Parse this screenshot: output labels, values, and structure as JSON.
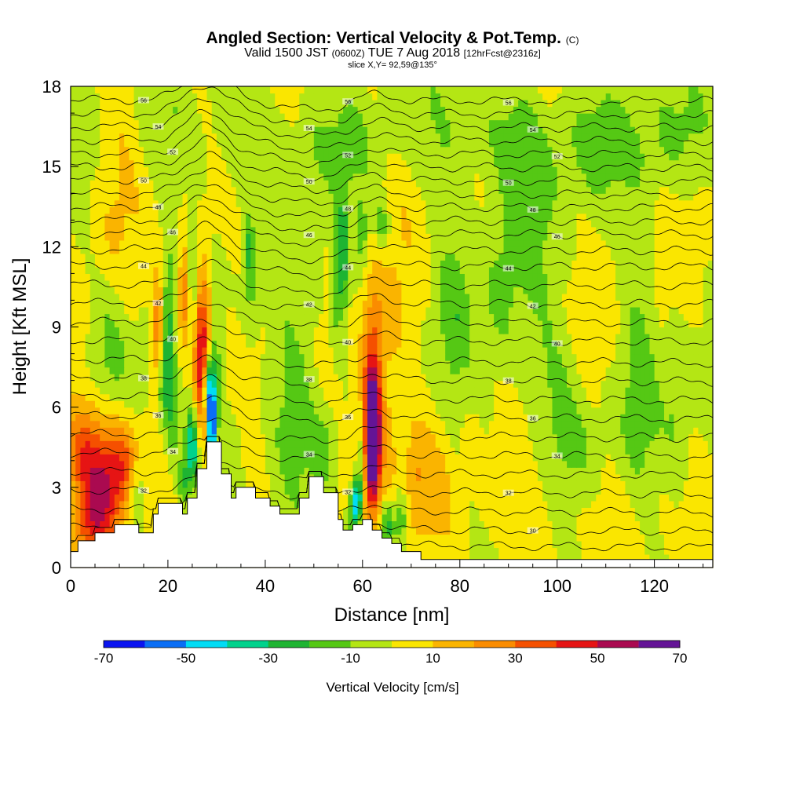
{
  "title": {
    "main": "Angled Section: Vertical Velocity & Pot.Temp.",
    "unit": "(C)",
    "valid_prefix": "Valid 1500 JST",
    "valid_zulu": "(0600Z)",
    "valid_date": "TUE 7 Aug 2018",
    "forecast": "[12hrFcst@2316z]",
    "slice": "slice X,Y= 92,59@135°"
  },
  "chart_data": {
    "type": "heatmap",
    "xlabel": "Distance [nm]",
    "ylabel": "Height [Kft MSL]",
    "xlim": [
      0,
      132
    ],
    "ylim": [
      0,
      18
    ],
    "xticks": [
      0,
      20,
      40,
      60,
      80,
      100,
      120
    ],
    "yticks": [
      0,
      3,
      6,
      9,
      12,
      15,
      18
    ],
    "colorbar": {
      "label": "Vertical Velocity [cm/s]",
      "ticks": [
        -70,
        -50,
        -30,
        -10,
        10,
        30,
        50,
        70
      ],
      "bounds": [
        -70,
        70
      ],
      "colors": [
        "#0a14f0",
        "#0a6ef5",
        "#00dcf5",
        "#00d28c",
        "#1eb432",
        "#55c814",
        "#b4e614",
        "#fae600",
        "#fab400",
        "#fa8c00",
        "#f55000",
        "#e61414",
        "#aa0a50",
        "#641496"
      ]
    },
    "background_velocity": 0,
    "terrain": [
      [
        0,
        0.6
      ],
      [
        1.5,
        0.6
      ],
      [
        1.5,
        1.0
      ],
      [
        5,
        1.0
      ],
      [
        5,
        1.3
      ],
      [
        9,
        1.3
      ],
      [
        9,
        1.6
      ],
      [
        14,
        1.6
      ],
      [
        14,
        1.3
      ],
      [
        17,
        1.3
      ],
      [
        17,
        2.0
      ],
      [
        18,
        2.0
      ],
      [
        18,
        2.4
      ],
      [
        23,
        2.4
      ],
      [
        23,
        2.0
      ],
      [
        24,
        2.0
      ],
      [
        24,
        2.6
      ],
      [
        26,
        2.6
      ],
      [
        26,
        3.7
      ],
      [
        28,
        3.7
      ],
      [
        28,
        4.7
      ],
      [
        31,
        4.7
      ],
      [
        31,
        3.5
      ],
      [
        33,
        3.5
      ],
      [
        33,
        2.6
      ],
      [
        34,
        2.6
      ],
      [
        34,
        3.0
      ],
      [
        38,
        3.0
      ],
      [
        38,
        2.6
      ],
      [
        41,
        2.6
      ],
      [
        41,
        2.3
      ],
      [
        43,
        2.3
      ],
      [
        43,
        2.0
      ],
      [
        47,
        2.0
      ],
      [
        47,
        2.6
      ],
      [
        49,
        2.6
      ],
      [
        49,
        3.4
      ],
      [
        52,
        3.4
      ],
      [
        52,
        2.8
      ],
      [
        55,
        2.8
      ],
      [
        55,
        1.8
      ],
      [
        56,
        1.8
      ],
      [
        56,
        1.4
      ],
      [
        58,
        1.4
      ],
      [
        58,
        1.6
      ],
      [
        60,
        1.6
      ],
      [
        60,
        1.8
      ],
      [
        62,
        1.8
      ],
      [
        62,
        1.4
      ],
      [
        64,
        1.4
      ],
      [
        64,
        1.1
      ],
      [
        66,
        1.1
      ],
      [
        66,
        0.9
      ],
      [
        68,
        0.9
      ],
      [
        68,
        0.6
      ],
      [
        72,
        0.6
      ],
      [
        72,
        0.3
      ],
      [
        132,
        0.3
      ]
    ],
    "features": [
      {
        "x": 7,
        "y": 3.2,
        "sx": 3.2,
        "sy": 1.6,
        "v": 45
      },
      {
        "x": 2.5,
        "y": 4.5,
        "sx": 2.5,
        "sy": 1.5,
        "v": 25
      },
      {
        "x": 4,
        "y": 1.6,
        "sx": 3,
        "sy": 0.7,
        "v": 20
      },
      {
        "x": 11,
        "y": 4.0,
        "sx": 2.5,
        "sy": 1.2,
        "v": 22
      },
      {
        "x": 13.5,
        "y": 2.8,
        "sx": 1.2,
        "sy": 0.9,
        "v": -18
      },
      {
        "x": 15,
        "y": 7.8,
        "sx": 1.2,
        "sy": 1.0,
        "v": -12
      },
      {
        "x": 18,
        "y": 9.0,
        "sx": 0.9,
        "sy": 1.3,
        "v": 30
      },
      {
        "x": 20,
        "y": 8.5,
        "sx": 1.0,
        "sy": 2.2,
        "v": -25
      },
      {
        "x": 19,
        "y": 6.5,
        "sx": 0.8,
        "sy": 1.2,
        "v": -15
      },
      {
        "x": 23.5,
        "y": 10.2,
        "sx": 1.0,
        "sy": 1.4,
        "v": 35
      },
      {
        "x": 25,
        "y": 11.0,
        "sx": 0.7,
        "sy": 1.2,
        "v": -22
      },
      {
        "x": 27,
        "y": 8.0,
        "sx": 1.2,
        "sy": 2.0,
        "v": 58
      },
      {
        "x": 29,
        "y": 5.5,
        "sx": 0.6,
        "sy": 1.4,
        "v": -72
      },
      {
        "x": 28,
        "y": 6.7,
        "sx": 0.5,
        "sy": 0.8,
        "v": -45
      },
      {
        "x": 25,
        "y": 4.6,
        "sx": 0.9,
        "sy": 1.0,
        "v": -45
      },
      {
        "x": 23,
        "y": 3.2,
        "sx": 1.0,
        "sy": 0.7,
        "v": -25
      },
      {
        "x": 21,
        "y": 5.2,
        "sx": 0.8,
        "sy": 1.2,
        "v": -18
      },
      {
        "x": 30,
        "y": 8.0,
        "sx": 1.0,
        "sy": 1.8,
        "v": -12
      },
      {
        "x": 36.5,
        "y": 12.0,
        "sx": 0.7,
        "sy": 0.8,
        "v": -22
      },
      {
        "x": 37,
        "y": 10.3,
        "sx": 1.0,
        "sy": 1.0,
        "v": -12
      },
      {
        "x": 56,
        "y": 11.5,
        "sx": 0.8,
        "sy": 1.6,
        "v": -28
      },
      {
        "x": 54.5,
        "y": 10.5,
        "sx": 0.8,
        "sy": 1.5,
        "v": -18
      },
      {
        "x": 60,
        "y": 12.5,
        "sx": 0.9,
        "sy": 1.0,
        "v": -15
      },
      {
        "x": 64,
        "y": 12.8,
        "sx": 1.0,
        "sy": 0.6,
        "v": -22
      },
      {
        "x": 62,
        "y": 4.6,
        "sx": 1.0,
        "sy": 1.4,
        "v": 75
      },
      {
        "x": 62,
        "y": 6.8,
        "sx": 1.6,
        "sy": 2.5,
        "v": 42
      },
      {
        "x": 64,
        "y": 4.5,
        "sx": 3.5,
        "sy": 2.5,
        "v": 16
      },
      {
        "x": 59,
        "y": 2.6,
        "sx": 0.7,
        "sy": 0.7,
        "v": -48
      },
      {
        "x": 58,
        "y": 1.8,
        "sx": 0.8,
        "sy": 0.8,
        "v": -28
      },
      {
        "x": 60,
        "y": 4.5,
        "sx": 0.7,
        "sy": 1.2,
        "v": -18
      },
      {
        "x": 65,
        "y": 1.5,
        "sx": 1.0,
        "sy": 0.7,
        "v": -30
      },
      {
        "x": 68,
        "y": 2.0,
        "sx": 1.0,
        "sy": 0.8,
        "v": -22
      },
      {
        "x": 71,
        "y": 3.5,
        "sx": 1.5,
        "sy": 1.3,
        "v": 14
      },
      {
        "x": 75,
        "y": 3.0,
        "sx": 2.0,
        "sy": 1.5,
        "v": 10
      },
      {
        "x": 66,
        "y": 9.5,
        "sx": 2.5,
        "sy": 1.5,
        "v": 8
      },
      {
        "x": 79,
        "y": 9.5,
        "sx": 2.5,
        "sy": 2.5,
        "v": -12
      },
      {
        "x": 88,
        "y": 10,
        "sx": 3,
        "sy": 3,
        "v": -12
      },
      {
        "x": 100,
        "y": 7,
        "sx": 4,
        "sy": 2,
        "v": -10
      },
      {
        "x": 117,
        "y": 8.5,
        "sx": 3,
        "sy": 4,
        "v": -12
      },
      {
        "x": 125,
        "y": 6,
        "sx": 2,
        "sy": 2.5,
        "v": -12
      },
      {
        "x": 105,
        "y": 4.5,
        "sx": 4,
        "sy": 1.5,
        "v": -9
      },
      {
        "x": 112,
        "y": 11.5,
        "sx": 4,
        "sy": 2,
        "v": 6
      },
      {
        "x": 128,
        "y": 12,
        "sx": 3,
        "sy": 2,
        "v": 7
      },
      {
        "x": 95,
        "y": 13,
        "sx": 4,
        "sy": 2,
        "v": -8
      },
      {
        "x": 90,
        "y": 2,
        "sx": 10,
        "sy": 1.5,
        "v": 5
      },
      {
        "x": 110,
        "y": 2,
        "sx": 10,
        "sy": 1.5,
        "v": 4
      },
      {
        "x": 100,
        "y": 16,
        "sx": 25,
        "sy": 1.5,
        "v": -12
      },
      {
        "x": 35,
        "y": 16,
        "sx": 20,
        "sy": 1.5,
        "v": -8
      },
      {
        "x": 8,
        "y": 12,
        "sx": 3,
        "sy": 2,
        "v": 10
      },
      {
        "x": 10,
        "y": 16,
        "sx": 4,
        "sy": 1.8,
        "v": 10
      },
      {
        "x": 42,
        "y": 14,
        "sx": 4,
        "sy": 2,
        "v": 6
      },
      {
        "x": 48,
        "y": 11,
        "sx": 3,
        "sy": 3,
        "v": -10
      },
      {
        "x": 70,
        "y": 15,
        "sx": 4,
        "sy": 2,
        "v": 6
      },
      {
        "x": 8,
        "y": 9,
        "sx": 3,
        "sy": 2,
        "v": -10
      },
      {
        "x": 33,
        "y": 5,
        "sx": 2,
        "sy": 1,
        "v": -8
      },
      {
        "x": 45,
        "y": 6,
        "sx": 4,
        "sy": 2,
        "v": -10
      },
      {
        "x": 52,
        "y": 4.5,
        "sx": 2,
        "sy": 1,
        "v": -12
      },
      {
        "x": 82,
        "y": 6.5,
        "sx": 3,
        "sy": 1.5,
        "v": 4
      }
    ],
    "isentropes": [
      {
        "base": 0.9,
        "label": ""
      },
      {
        "base": 1.5,
        "label": "30"
      },
      {
        "base": 2.2,
        "label": ""
      },
      {
        "base": 2.9,
        "label": "32"
      },
      {
        "base": 3.6,
        "label": ""
      },
      {
        "base": 4.3,
        "label": "34"
      },
      {
        "base": 5.0,
        "label": ""
      },
      {
        "base": 5.7,
        "label": "36"
      },
      {
        "base": 6.4,
        "label": ""
      },
      {
        "base": 7.1,
        "label": "38"
      },
      {
        "base": 7.8,
        "label": ""
      },
      {
        "base": 8.5,
        "label": "40"
      },
      {
        "base": 9.2,
        "label": ""
      },
      {
        "base": 9.9,
        "label": "42"
      },
      {
        "base": 10.6,
        "label": ""
      },
      {
        "base": 11.3,
        "label": "44"
      },
      {
        "base": 11.9,
        "label": ""
      },
      {
        "base": 12.5,
        "label": "46"
      },
      {
        "base": 13.0,
        "label": ""
      },
      {
        "base": 13.5,
        "label": "48"
      },
      {
        "base": 14.0,
        "label": ""
      },
      {
        "base": 14.5,
        "label": "50"
      },
      {
        "base": 15.0,
        "label": ""
      },
      {
        "base": 15.5,
        "label": "52"
      },
      {
        "base": 16.0,
        "label": ""
      },
      {
        "base": 16.5,
        "label": "54"
      },
      {
        "base": 17.0,
        "label": ""
      },
      {
        "base": 17.5,
        "label": "56"
      }
    ]
  }
}
